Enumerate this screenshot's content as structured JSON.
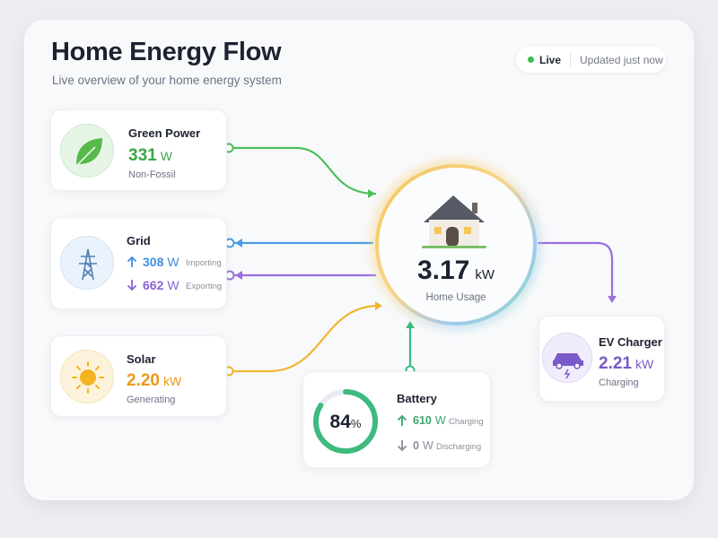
{
  "header": {
    "title": "Home Energy Flow",
    "subtitle": "Live overview of your home energy system"
  },
  "status": {
    "live": "Live",
    "updated": "Updated just now"
  },
  "sources": {
    "green_power": {
      "title": "Green Power",
      "value": "331",
      "unit": "W",
      "caption": "Non-Fossil"
    },
    "grid": {
      "title": "Grid",
      "importing": {
        "value": "308",
        "unit": "W",
        "label": "Importing"
      },
      "exporting": {
        "value": "662",
        "unit": "W",
        "label": "Exporting"
      }
    },
    "solar": {
      "title": "Solar",
      "value": "2.20",
      "unit": "kW",
      "caption": "Generating"
    }
  },
  "home": {
    "value": "3.17",
    "unit": "kW",
    "caption": "Home Usage"
  },
  "battery": {
    "title": "Battery",
    "percent": 84,
    "percent_unit": "%",
    "charging": {
      "value": "610",
      "unit": "W",
      "label": "Charging"
    },
    "discharging": {
      "value": "0",
      "unit": "W",
      "label": "Discharging"
    }
  },
  "ev_charger": {
    "title": "EV Charger",
    "value": "2.21",
    "unit": "kW",
    "caption": "Charging"
  }
}
